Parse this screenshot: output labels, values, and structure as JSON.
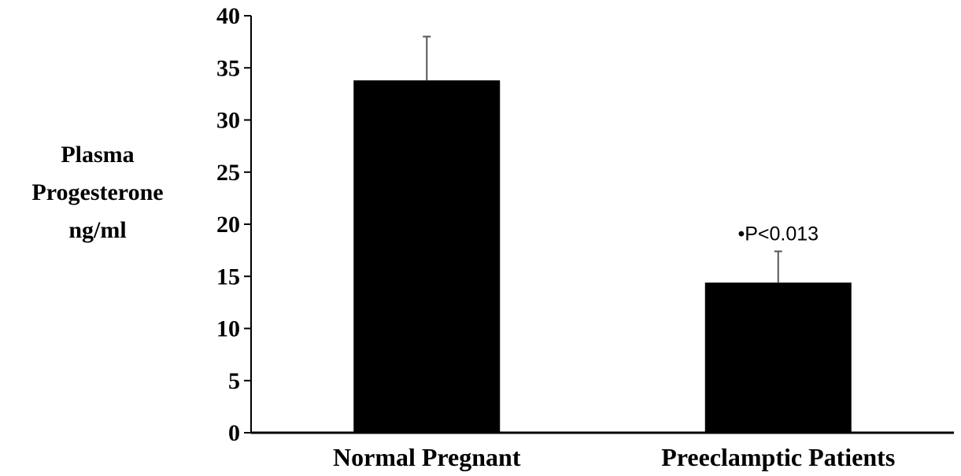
{
  "chart_data": {
    "type": "bar",
    "title": "",
    "xlabel": "",
    "ylabel_lines": [
      "Plasma",
      "Progesterone",
      "ng/ml"
    ],
    "categories": [
      "Normal Pregnant",
      "Preeclamptic Patients"
    ],
    "values": [
      33.8,
      14.4
    ],
    "errors": [
      4.2,
      3.0
    ],
    "ylim": [
      0,
      40
    ],
    "yticks": [
      "0",
      "5",
      "10",
      "15",
      "20",
      "25",
      "30",
      "35",
      "40"
    ],
    "grid": false,
    "annotations": [
      {
        "category": "Preeclamptic Patients",
        "text": "•P<0.013"
      }
    ],
    "bar_color": "#000000"
  }
}
